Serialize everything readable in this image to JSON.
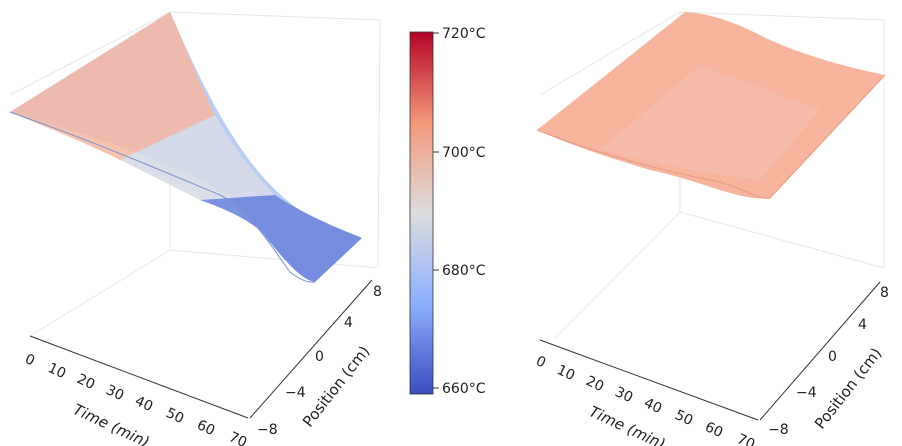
{
  "chart_data": [
    {
      "type": "surface3d",
      "xlabel": "Time (min)",
      "ylabel": "Position (cm)",
      "x_ticks": [
        "0",
        "10",
        "20",
        "30",
        "40",
        "50",
        "60",
        "70"
      ],
      "y_ticks": [
        "−8",
        "−4",
        "0",
        "4",
        "8"
      ],
      "x_range": [
        0,
        70
      ],
      "y_range": [
        -8,
        8
      ],
      "surface": {
        "start_temp_c": 703,
        "end_temp_c": 657,
        "description_note": ""
      }
    },
    {
      "type": "surface3d",
      "xlabel": "Time (min)",
      "ylabel": "Position (cm)",
      "x_ticks": [
        "0",
        "10",
        "20",
        "30",
        "40",
        "50",
        "60",
        "70"
      ],
      "y_ticks": [
        "−8",
        "−4",
        "0",
        "4",
        "8"
      ],
      "x_range": [
        0,
        70
      ],
      "y_range": [
        -8,
        8
      ],
      "surface": {
        "start_temp_c": 703,
        "end_temp_c": 701,
        "description_note": ""
      }
    }
  ],
  "colorbar": {
    "ticks": [
      "720°C",
      "700°C",
      "680°C",
      "660°C"
    ],
    "values": [
      720,
      700,
      680,
      660
    ],
    "range": [
      655,
      720
    ],
    "colors": [
      "#3b4cc0",
      "#8db0fe",
      "#dddddd",
      "#f4987a",
      "#b40426"
    ]
  }
}
